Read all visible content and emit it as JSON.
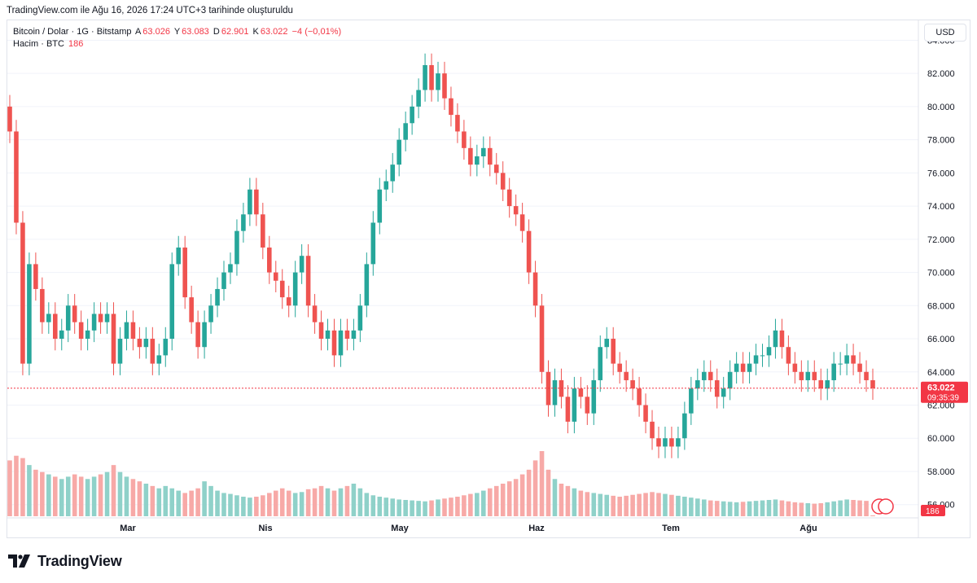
{
  "caption": "TradingView.com ile Ağu 16, 2026 17:24 UTC+3 tarihinde oluşturuldu",
  "legend": {
    "symbol": "Bitcoin / Dolar · 1G · Bitstamp",
    "open_label": "A",
    "open": "63.026",
    "high_label": "Y",
    "high": "63.083",
    "low_label": "D",
    "low": "62.901",
    "close_label": "K",
    "close": "63.022",
    "change": "−4 (−0,01%)",
    "volume_label": "Hacim · BTC",
    "volume_value": "186"
  },
  "currency": "USD",
  "price_badge": {
    "price": "63.022",
    "countdown": "09:35:39",
    "color": "#f23645"
  },
  "volume_badge": "186",
  "logo": {
    "text": "TradingView",
    "icon": "tradingview-logo-icon"
  },
  "colors": {
    "up": "#26a69a",
    "down": "#ef5350",
    "vol_up": "#8fd1c9",
    "vol_down": "#f7a9a7",
    "grid": "#f0f3fa",
    "axis_text": "#131722"
  },
  "chart_data": {
    "type": "candlestick",
    "title": "Bitcoin / Dolar · 1G · Bitstamp",
    "y_axis_ticks": [
      "84.000",
      "82.000",
      "80.000",
      "78.000",
      "76.000",
      "74.000",
      "72.000",
      "70.000",
      "68.000",
      "66.000",
      "64.000",
      "62.000",
      "60.000",
      "58.000",
      "56.000"
    ],
    "y_axis_values": [
      84000,
      82000,
      80000,
      78000,
      76000,
      74000,
      72000,
      70000,
      68000,
      66000,
      64000,
      62000,
      60000,
      58000,
      56000
    ],
    "x_axis_labels": [
      "Mar",
      "Nis",
      "May",
      "Haz",
      "Tem",
      "Ağu"
    ],
    "ylim": [
      55200,
      85200
    ],
    "last_price": 63022,
    "grid": true,
    "series": [
      {
        "name": "BTCUSD",
        "close": [
          78500,
          73000,
          64500,
          70500,
          69000,
          67000,
          67500,
          66000,
          66500,
          68000,
          67000,
          66000,
          66500,
          67500,
          67000,
          67500,
          64500,
          66000,
          67000,
          66000,
          65500,
          66000,
          64500,
          65000,
          66000,
          70500,
          71500,
          68500,
          67000,
          65500,
          67000,
          68000,
          69000,
          70000,
          70500,
          72500,
          73500,
          75000,
          73500,
          71500,
          70000,
          69500,
          68500,
          68000,
          70000,
          71000,
          68000,
          67000,
          66000,
          66500,
          65000,
          66500,
          66000,
          66500,
          68000,
          70500,
          73000,
          75000,
          75500,
          76500,
          78000,
          79000,
          80000,
          81000,
          82500,
          81000,
          82000,
          80500,
          79500,
          78500,
          77500,
          76500,
          77000,
          77500,
          76500,
          76000,
          75000,
          74000,
          73500,
          72500,
          70000,
          68000,
          64000,
          62000,
          63500,
          62500,
          61000,
          63000,
          62500,
          61500,
          63500,
          65500,
          66000,
          64500,
          64000,
          63500,
          63000,
          62000,
          61000,
          60000,
          59500,
          60000,
          59500,
          60000,
          61500,
          63000,
          63500,
          64000,
          63500,
          62500,
          63000,
          64000,
          64500,
          64000,
          64500,
          65000,
          65000,
          65500,
          66500,
          65500,
          64500,
          64000,
          63500,
          64000,
          63500,
          63000,
          63500,
          64500,
          64500,
          65000,
          64500,
          64000,
          63500,
          63022
        ]
      },
      {
        "name": "Hacim · BTC",
        "values": [
          12000,
          13000,
          12500,
          11000,
          10000,
          9500,
          9000,
          8500,
          8000,
          8500,
          9000,
          8500,
          8000,
          8500,
          9000,
          9500,
          11000,
          9500,
          8500,
          8000,
          7500,
          7000,
          6500,
          6000,
          6500,
          6000,
          5500,
          5000,
          5500,
          6000,
          7500,
          6500,
          5500,
          5000,
          4800,
          4500,
          4200,
          4000,
          4200,
          4500,
          5000,
          5500,
          6000,
          5500,
          5000,
          5200,
          5800,
          6000,
          6500,
          6000,
          5500,
          6000,
          6500,
          7000,
          6000,
          5000,
          4500,
          4200,
          4000,
          3800,
          3600,
          3500,
          3400,
          3300,
          3200,
          3400,
          3600,
          3800,
          4000,
          4200,
          4500,
          4800,
          5000,
          5500,
          6000,
          6500,
          7000,
          7500,
          8000,
          9000,
          10000,
          12000,
          14000,
          10000,
          8000,
          7000,
          6500,
          6000,
          5500,
          5200,
          5000,
          4800,
          4600,
          4400,
          4200,
          4400,
          4600,
          4800,
          5000,
          5200,
          5000,
          4800,
          4600,
          4400,
          4200,
          4000,
          3800,
          3600,
          3400,
          3300,
          3200,
          3100,
          3000,
          3100,
          3200,
          3300,
          3400,
          3500,
          3600,
          3400,
          3200,
          3000,
          2900,
          2800,
          2700,
          2800,
          3000,
          3200,
          3400,
          3600,
          3500,
          3400,
          3300,
          186
        ]
      }
    ]
  }
}
